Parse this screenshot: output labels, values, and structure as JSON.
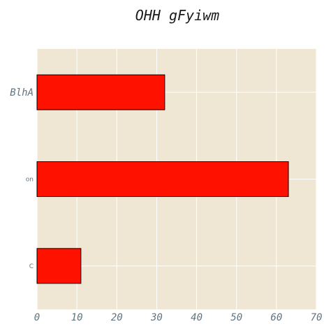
{
  "chart_data": {
    "type": "bar",
    "orientation": "horizontal",
    "title": "OHH  gFyiwm",
    "categories": [
      "BlhA",
      "on",
      "C"
    ],
    "values": [
      32,
      63,
      11
    ],
    "xlim": [
      0,
      70
    ],
    "xticks": [
      0,
      10,
      20,
      30,
      40,
      50,
      60,
      70
    ],
    "grid": true,
    "colors": {
      "bar": "#ff1100",
      "bar_edge": "#000000",
      "plot_background": "#efe7d3",
      "grid": "#ffffff"
    }
  }
}
